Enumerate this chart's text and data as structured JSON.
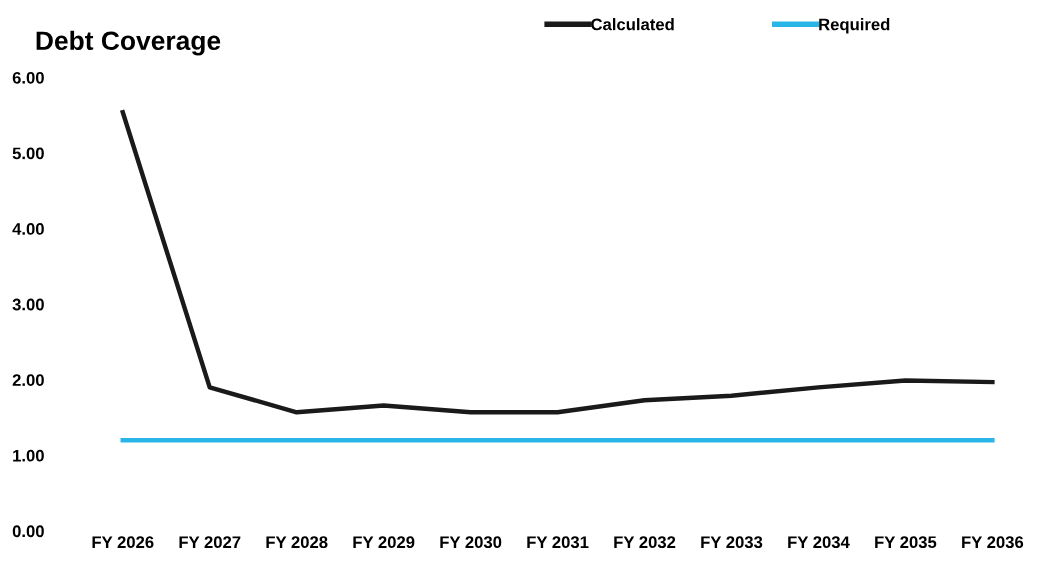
{
  "chart_data": {
    "type": "line",
    "title": "Debt Coverage",
    "categories": [
      "FY 2026",
      "FY 2027",
      "FY 2028",
      "FY 2029",
      "FY 2030",
      "FY 2031",
      "FY 2032",
      "FY 2033",
      "FY 2034",
      "FY 2035",
      "FY 2036"
    ],
    "series": [
      {
        "name": "Calculated",
        "color": "#1a1a1a",
        "values": [
          5.54,
          1.9,
          1.57,
          1.66,
          1.57,
          1.57,
          1.73,
          1.79,
          1.9,
          1.99,
          1.97
        ]
      },
      {
        "name": "Required",
        "color": "#29b5e8",
        "values": [
          1.2,
          1.2,
          1.2,
          1.2,
          1.2,
          1.2,
          1.2,
          1.2,
          1.2,
          1.2,
          1.2
        ]
      }
    ],
    "ylim": [
      0,
      6
    ],
    "yticks": [
      {
        "value": 0,
        "label": "0.00"
      },
      {
        "value": 1,
        "label": "1.00"
      },
      {
        "value": 2,
        "label": "2.00"
      },
      {
        "value": 3,
        "label": "3.00"
      },
      {
        "value": 4,
        "label": "4.00"
      },
      {
        "value": 5,
        "label": "5.00"
      },
      {
        "value": 6,
        "label": "6.00"
      }
    ],
    "grid": false,
    "legend": "top",
    "marker": "none",
    "line_style": "solid"
  }
}
